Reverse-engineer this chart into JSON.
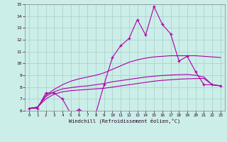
{
  "xlabel": "Windchill (Refroidissement éolien,°C)",
  "xlim": [
    -0.5,
    23.5
  ],
  "ylim": [
    6,
    15
  ],
  "xticks": [
    0,
    1,
    2,
    3,
    4,
    5,
    6,
    7,
    8,
    9,
    10,
    11,
    12,
    13,
    14,
    15,
    16,
    17,
    18,
    19,
    20,
    21,
    22,
    23
  ],
  "yticks": [
    6,
    7,
    8,
    9,
    10,
    11,
    12,
    13,
    14,
    15
  ],
  "bg_color": "#cceee8",
  "line_color": "#aa00aa",
  "grid_color": "#aacccc",
  "series": {
    "line1_x": [
      0,
      1,
      2,
      3,
      4,
      5,
      6,
      7,
      8,
      9,
      10,
      11,
      12,
      13,
      14,
      15,
      16,
      17,
      18,
      19,
      20,
      21,
      22,
      23
    ],
    "line1_y": [
      6.2,
      6.2,
      7.5,
      7.5,
      7.0,
      5.75,
      6.1,
      5.75,
      5.75,
      8.2,
      10.5,
      11.5,
      12.1,
      13.7,
      12.4,
      14.8,
      13.3,
      12.5,
      10.2,
      10.6,
      9.3,
      8.2,
      8.2,
      8.1
    ],
    "line2_x": [
      0,
      1,
      2,
      3,
      4,
      5,
      6,
      7,
      8,
      9,
      10,
      11,
      12,
      13,
      14,
      15,
      16,
      17,
      18,
      19,
      20,
      21,
      22,
      23
    ],
    "line2_y": [
      6.2,
      6.3,
      7.3,
      7.8,
      8.2,
      8.5,
      8.7,
      8.85,
      9.0,
      9.2,
      9.5,
      9.8,
      10.1,
      10.3,
      10.45,
      10.55,
      10.6,
      10.65,
      10.65,
      10.65,
      10.65,
      10.6,
      10.55,
      10.5
    ],
    "line3_x": [
      0,
      1,
      2,
      3,
      4,
      5,
      6,
      7,
      8,
      9,
      10,
      11,
      12,
      13,
      14,
      15,
      16,
      17,
      18,
      19,
      20,
      21,
      22,
      23
    ],
    "line3_y": [
      6.2,
      6.3,
      7.2,
      7.6,
      7.85,
      7.95,
      8.05,
      8.1,
      8.2,
      8.3,
      8.45,
      8.55,
      8.65,
      8.75,
      8.85,
      8.92,
      8.98,
      9.02,
      9.05,
      9.07,
      9.0,
      8.85,
      8.2,
      8.1
    ],
    "line4_x": [
      0,
      1,
      2,
      3,
      4,
      5,
      6,
      7,
      8,
      9,
      10,
      11,
      12,
      13,
      14,
      15,
      16,
      17,
      18,
      19,
      20,
      21,
      22,
      23
    ],
    "line4_y": [
      6.2,
      6.3,
      7.0,
      7.4,
      7.6,
      7.7,
      7.75,
      7.8,
      7.85,
      7.9,
      8.0,
      8.1,
      8.2,
      8.3,
      8.4,
      8.5,
      8.57,
      8.62,
      8.67,
      8.7,
      8.72,
      8.73,
      8.2,
      8.1
    ]
  }
}
